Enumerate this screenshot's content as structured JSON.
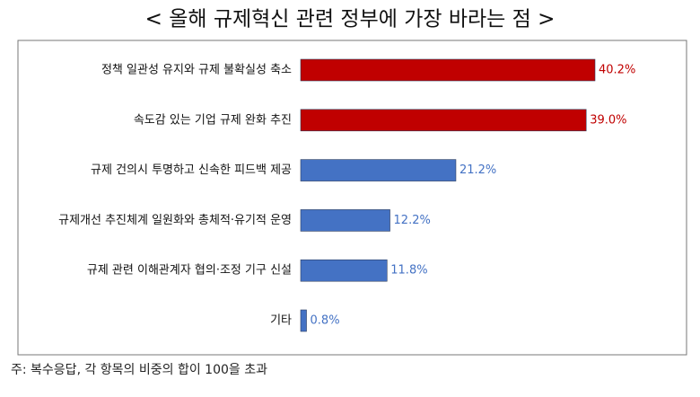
{
  "chart_data": {
    "type": "bar",
    "orientation": "horizontal",
    "title": "< 올해 규제혁신 관련 정부에 가장 바라는 점 >",
    "categories": [
      "정책 일관성 유지와 규제 불확실성 축소",
      "속도감 있는 기업 규제 완화 추진",
      "규제 건의시 투명하고 신속한 피드백 제공",
      "규제개선 추진체계 일원화와 총체적·유기적 운영",
      "규제 관련 이해관계자 협의·조정 기구 신설",
      "기타"
    ],
    "values": [
      40.2,
      39.0,
      21.2,
      12.2,
      11.8,
      0.8
    ],
    "value_labels": [
      "40.2%",
      "39.0%",
      "21.2%",
      "12.2%",
      "11.8%",
      "0.8%"
    ],
    "colors": [
      "#c00000",
      "#c00000",
      "#4472c4",
      "#4472c4",
      "#4472c4",
      "#4472c4"
    ],
    "label_colors": [
      "#c00000",
      "#c00000",
      "#4472c4",
      "#4472c4",
      "#4472c4",
      "#4472c4"
    ],
    "note": "주: 복수응답, 각 항목의 비중의 합이 100을 초과"
  }
}
